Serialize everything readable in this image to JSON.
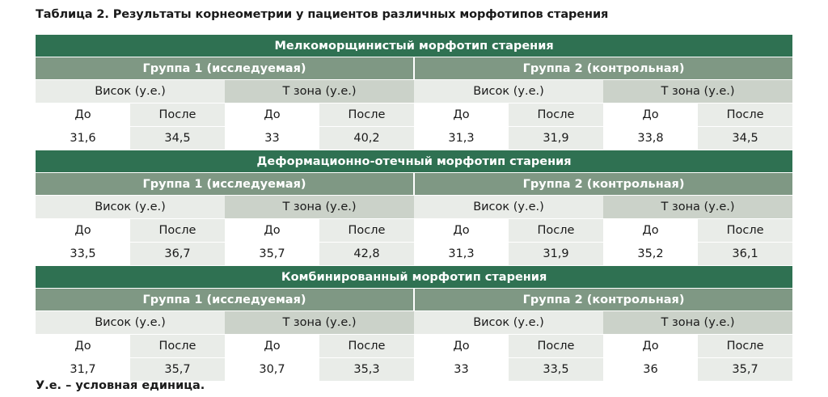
{
  "caption": "Таблица 2. Результаты корнеометрии у пациентов различных морфотипов старения",
  "groups": [
    "Группа 1 (исследуемая)",
    "Группа 2 (контрольная)"
  ],
  "zones": [
    "Висок (у.е.)",
    "Т зона (у.е.)",
    "Висок (у.е.)",
    "Т зона (у.е.)"
  ],
  "before_after": [
    "До",
    "После",
    "До",
    "После",
    "До",
    "После",
    "До",
    "После"
  ],
  "sections": [
    {
      "title": "Мелкоморщинистый морфотип старения",
      "values": [
        "31,6",
        "34,5",
        "33",
        "40,2",
        "31,3",
        "31,9",
        "33,8",
        "34,5"
      ]
    },
    {
      "title": "Деформационно-отечный морфотип старения",
      "values": [
        "33,5",
        "36,7",
        "35,7",
        "42,8",
        "31,3",
        "31,9",
        "35,2",
        "36,1"
      ]
    },
    {
      "title": "Комбинированный морфотип старения",
      "values": [
        "31,7",
        "35,7",
        "30,7",
        "35,3",
        "33",
        "33,5",
        "36",
        "35,7"
      ]
    }
  ],
  "footnote": "У.е. – условная единица.",
  "colors": {
    "section_header": "#2f7152",
    "group_header": "#7f9884",
    "light_cell": "#e9ece8",
    "dark_cell": "#cbd2c9"
  }
}
